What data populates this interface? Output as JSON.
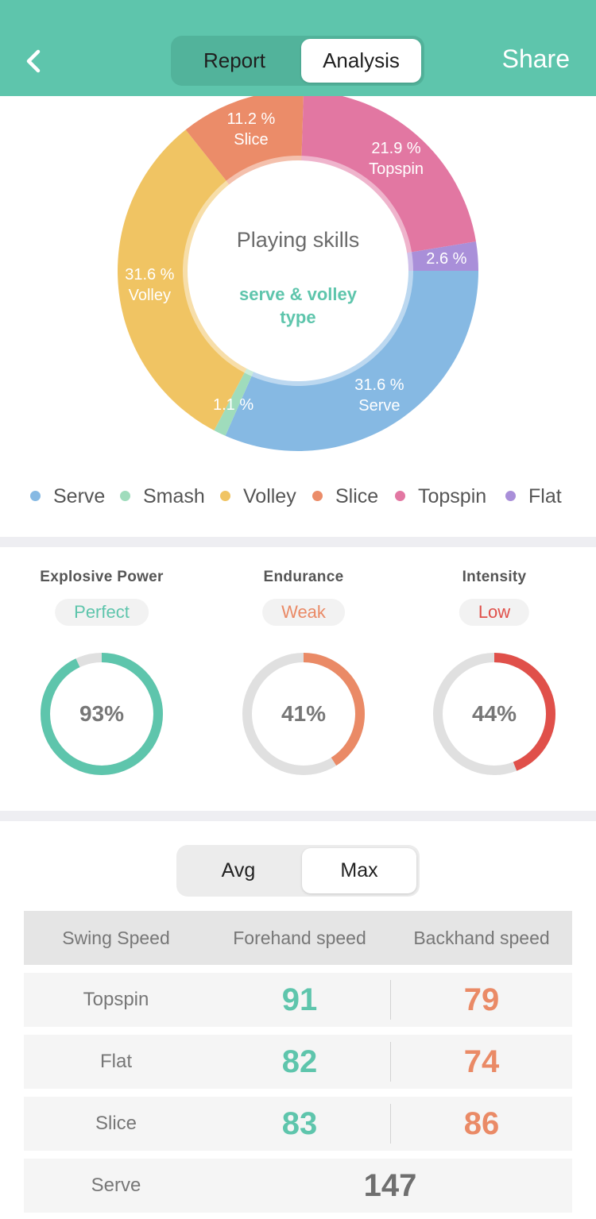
{
  "header": {
    "tabs": [
      {
        "label": "Report",
        "selected": false
      },
      {
        "label": "Analysis",
        "selected": true
      }
    ],
    "share_label": "Share",
    "back_icon": "chevron-left-icon"
  },
  "skills": {
    "center_title": "Playing skills",
    "center_subtitle": "serve & volley type"
  },
  "chart_data": {
    "type": "pie",
    "slices": [
      {
        "name": "Serve",
        "value": 31.6,
        "label": "31.6 %",
        "color": "#86b9e3"
      },
      {
        "name": "Smash",
        "value": 1.1,
        "label": "1.1 %",
        "color": "#9fdcbc"
      },
      {
        "name": "Volley",
        "value": 31.6,
        "label": "31.6 %",
        "color": "#f0c463"
      },
      {
        "name": "Slice",
        "value": 11.2,
        "label": "11.2 %",
        "color": "#eb8c69"
      },
      {
        "name": "Topspin",
        "value": 21.9,
        "label": "21.9 %",
        "color": "#e277a2"
      },
      {
        "name": "Flat",
        "value": 2.6,
        "label": "2.6 %",
        "color": "#a98fd9"
      }
    ],
    "legend": [
      "Serve",
      "Smash",
      "Volley",
      "Slice",
      "Topspin",
      "Flat"
    ],
    "legend_position": "bottom"
  },
  "metrics": [
    {
      "title": "Explosive Power",
      "badge": "Perfect",
      "value_text": "93%",
      "value": 93,
      "color": "#5ec5ac"
    },
    {
      "title": "Endurance",
      "badge": "Weak",
      "value_text": "41%",
      "value": 41,
      "color": "#ea8a66"
    },
    {
      "title": "Intensity",
      "badge": "Low",
      "value_text": "44%",
      "value": 44,
      "color": "#e0504a"
    }
  ],
  "speed_toggle": {
    "options": [
      "Avg",
      "Max"
    ],
    "selected": "Max"
  },
  "speed_table": {
    "headers": [
      "Swing Speed",
      "Forehand speed",
      "Backhand speed"
    ],
    "rows": [
      {
        "label": "Topspin",
        "forehand": "91",
        "backhand": "79"
      },
      {
        "label": "Flat",
        "forehand": "82",
        "backhand": "74"
      },
      {
        "label": "Slice",
        "forehand": "83",
        "backhand": "86"
      }
    ],
    "serve_row": {
      "label": "Serve",
      "value": "147"
    }
  },
  "colors": {
    "accent": "#5ec5ac",
    "warning": "#ea8a66",
    "danger": "#e0504a",
    "track": "#e0e0e0"
  }
}
